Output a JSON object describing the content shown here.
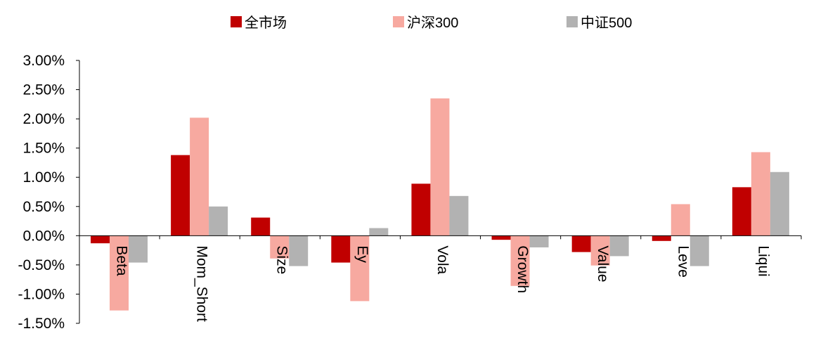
{
  "chart_data": {
    "type": "bar",
    "categories": [
      "Beta",
      "Mom_Short",
      "Size",
      "Ey",
      "Vola",
      "Growth",
      "Value",
      "Leve",
      "Liqui"
    ],
    "series": [
      {
        "name": "全市场",
        "color": "#C00000",
        "values": [
          -0.13,
          1.38,
          0.31,
          -0.46,
          0.89,
          -0.07,
          -0.28,
          -0.09,
          0.83
        ]
      },
      {
        "name": "沪深300",
        "color": "#F7A9A0",
        "values": [
          -1.28,
          2.02,
          -0.39,
          -1.12,
          2.35,
          -0.86,
          -0.51,
          0.54,
          1.43
        ]
      },
      {
        "name": "中证500",
        "color": "#B2B2B2",
        "values": [
          -0.46,
          0.5,
          -0.52,
          0.13,
          0.68,
          -0.2,
          -0.35,
          -0.52,
          1.09
        ]
      }
    ],
    "ylim": [
      -1.5,
      3.0
    ],
    "yticks": [
      "3.00%",
      "2.50%",
      "2.00%",
      "1.50%",
      "1.00%",
      "0.50%",
      "0.00%",
      "-0.50%",
      "-1.00%",
      "-1.50%"
    ],
    "ytick_values": [
      3.0,
      2.5,
      2.0,
      1.5,
      1.0,
      0.5,
      0.0,
      -0.5,
      -1.0,
      -1.5
    ],
    "legend_position": "top-center",
    "category_label_rotation": "vertical",
    "grid": false
  }
}
